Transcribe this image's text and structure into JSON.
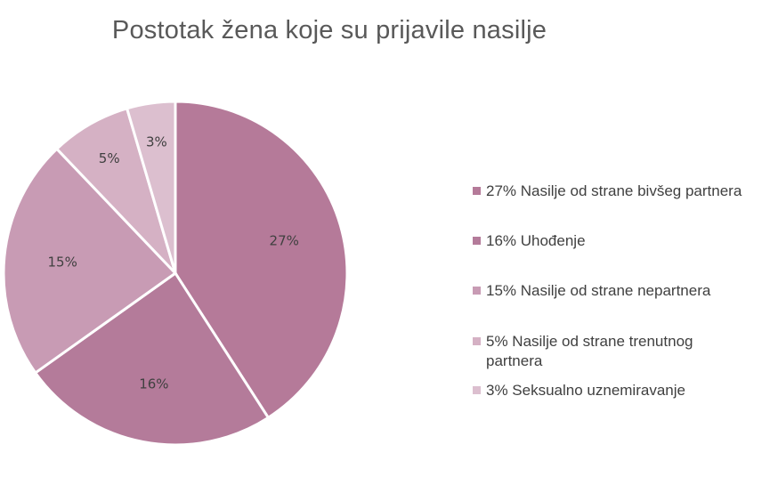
{
  "chart_data": {
    "type": "pie",
    "title": "Postotak žena koje su prijavile nasilje",
    "slices": [
      {
        "label": "27%",
        "legend": "27% Nasilje od strane bivšeg partnera",
        "value": 27,
        "color": "#b57a99"
      },
      {
        "label": "16%",
        "legend": "16% Uhođenje",
        "value": 16,
        "color": "#b47b9a"
      },
      {
        "label": "15%",
        "legend": "15% Nasilje od strane nepartnera",
        "value": 15,
        "color": "#c89bb4"
      },
      {
        "label": "5%",
        "legend": "5% Nasilje od strane trenutnog partnera",
        "value": 5,
        "color": "#d5b1c4"
      },
      {
        "label": "3%",
        "legend": "3% Seksualno uznemiravanje",
        "value": 3,
        "color": "#dcbfcf"
      }
    ],
    "legend_position": "right"
  }
}
